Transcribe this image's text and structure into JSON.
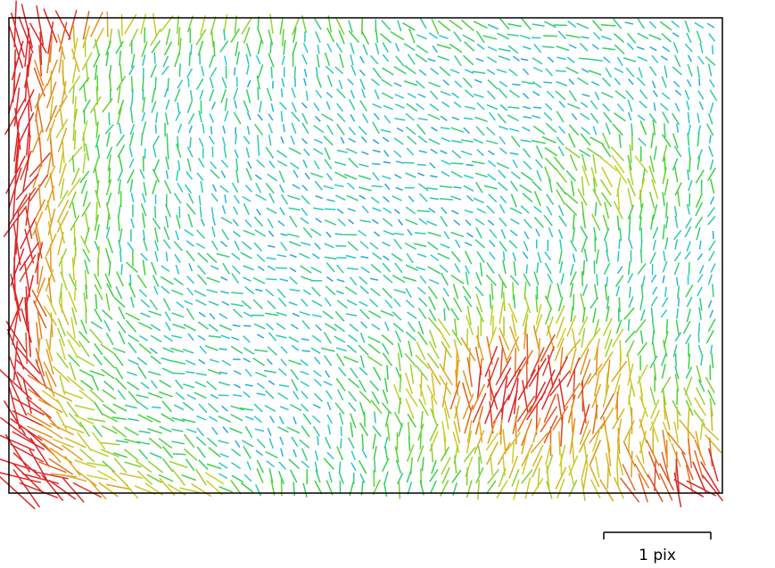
{
  "scale_bar": {
    "label": "1 pix"
  }
}
